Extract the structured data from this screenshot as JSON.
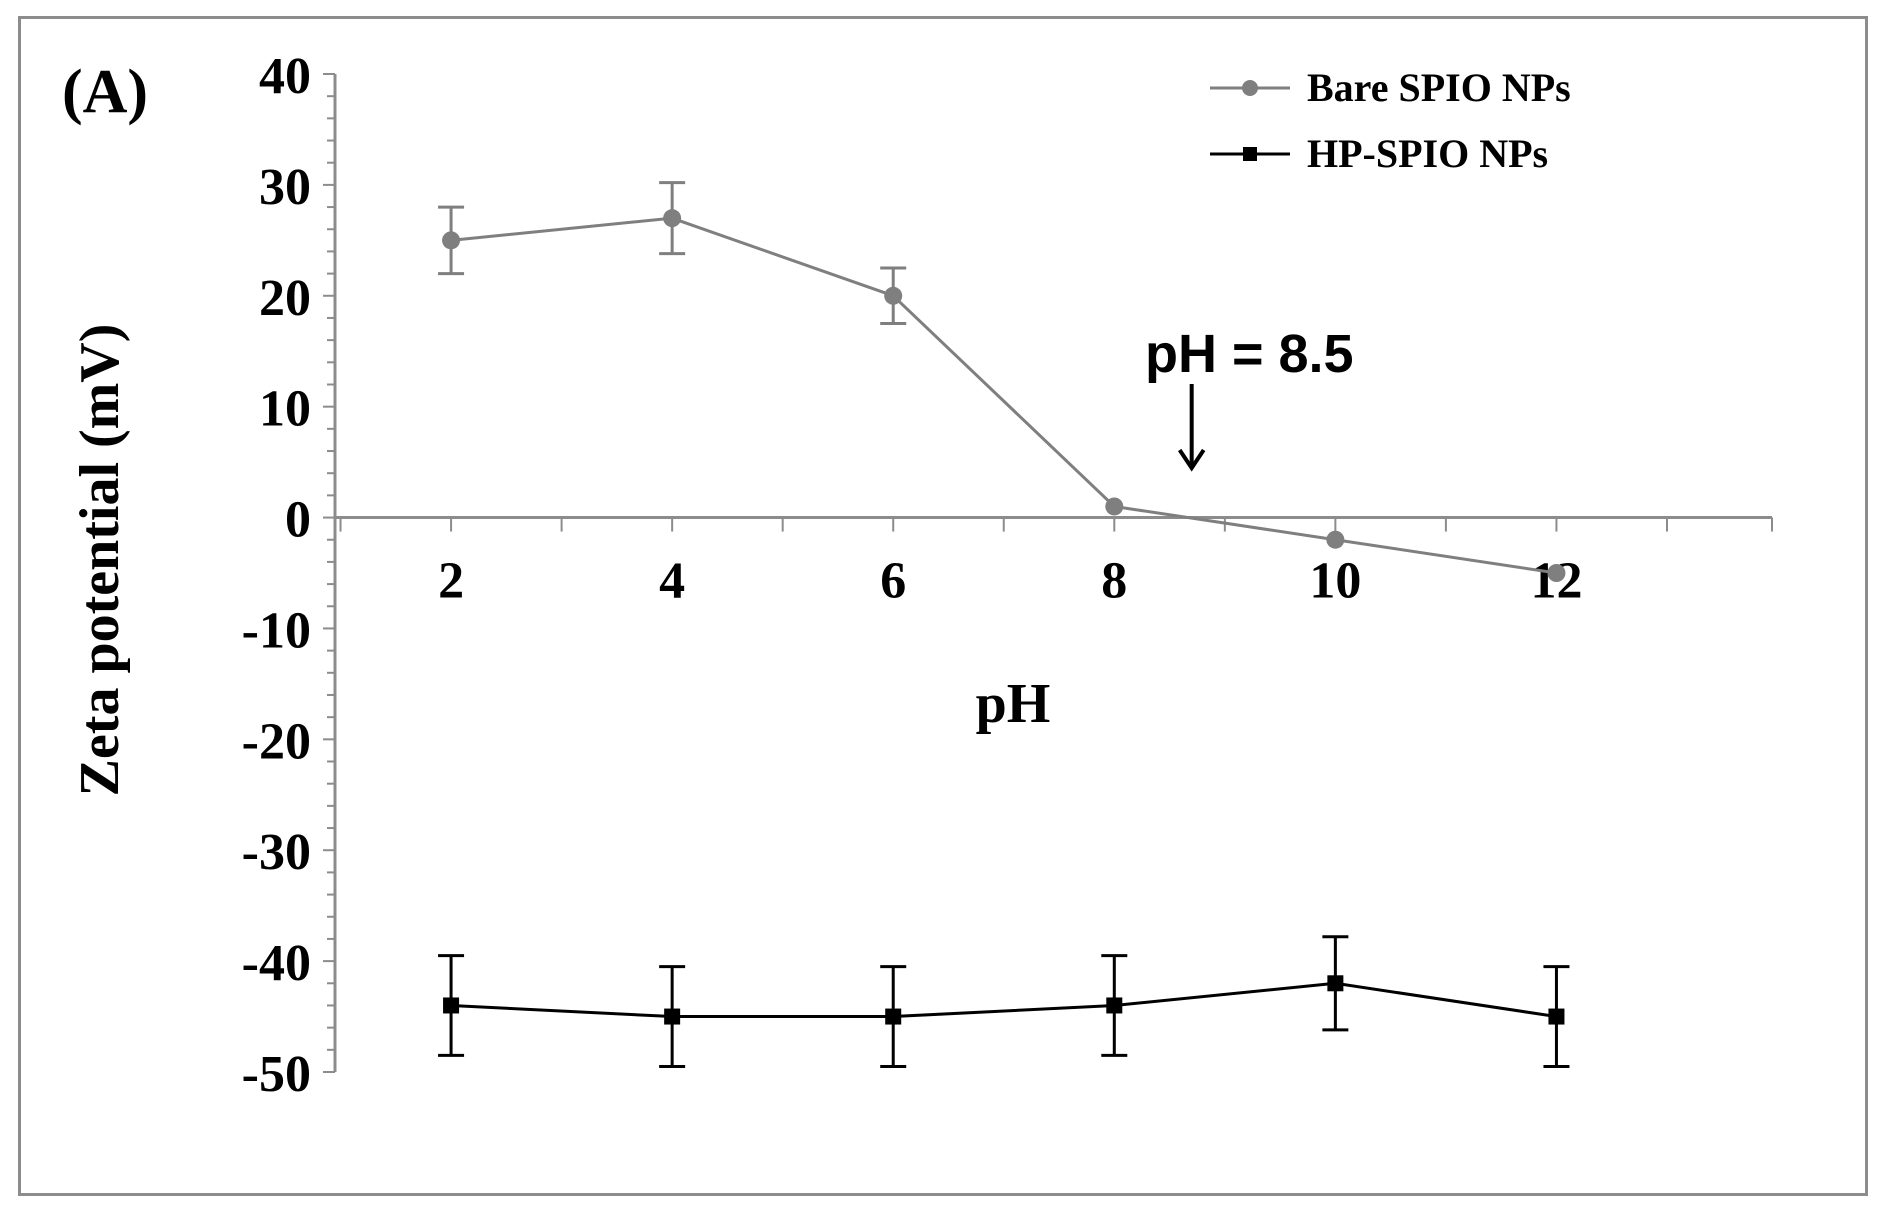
{
  "chart_data": {
    "type": "line",
    "panel_label": "(A)",
    "xlabel": "pH",
    "ylabel": "Zeta potential (mV)",
    "xlim": [
      0.95,
      13.95
    ],
    "ylim": [
      -50,
      40
    ],
    "x_ticks": [
      2,
      4,
      6,
      8,
      10,
      12
    ],
    "y_ticks": [
      40,
      30,
      20,
      10,
      0,
      -10,
      -20,
      -30,
      -40,
      -50
    ],
    "grid": false,
    "legend_position": "top-right",
    "annotation": {
      "text": "pH = 8.5",
      "x": 8.7,
      "arrow": "down"
    },
    "series": [
      {
        "name": "Bare SPIO NPs",
        "color": "#7f7f7f",
        "marker": "circle",
        "x": [
          2,
          4,
          6,
          8,
          10,
          12
        ],
        "y": [
          25,
          27,
          20,
          1,
          -2,
          -5
        ],
        "error": [
          3,
          3.2,
          2.5,
          0,
          0,
          0
        ]
      },
      {
        "name": "HP-SPIO NPs",
        "color": "#000000",
        "marker": "square",
        "x": [
          2,
          4,
          6,
          8,
          10,
          12
        ],
        "y": [
          -44,
          -45,
          -45,
          -44,
          -42,
          -45
        ],
        "error": [
          4.5,
          4.5,
          4.5,
          4.5,
          4.2,
          4.5
        ]
      }
    ]
  }
}
